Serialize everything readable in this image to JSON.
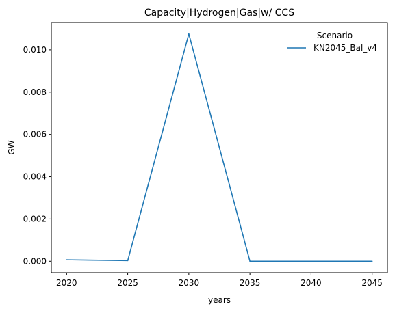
{
  "chart_data": {
    "type": "line",
    "title": "Capacity|Hydrogen|Gas|w/ CCS",
    "xlabel": "years",
    "ylabel": "GW",
    "x": [
      2020,
      2025,
      2030,
      2035,
      2040,
      2045
    ],
    "x_ticks": [
      "2020",
      "2025",
      "2030",
      "2035",
      "2040",
      "2045"
    ],
    "y_ticks": [
      "0.000",
      "0.002",
      "0.004",
      "0.006",
      "0.008",
      "0.010"
    ],
    "xlim": [
      2018.75,
      2046.25
    ],
    "ylim": [
      -0.00054,
      0.01129
    ],
    "grid": false,
    "legend": {
      "title": "Scenario",
      "placement": "top-right"
    },
    "series": [
      {
        "name": "KN2045_Bal_v4",
        "color": "#1f77b4",
        "values": [
          7e-05,
          3e-05,
          0.01075,
          0.0,
          0.0,
          0.0
        ]
      }
    ]
  }
}
